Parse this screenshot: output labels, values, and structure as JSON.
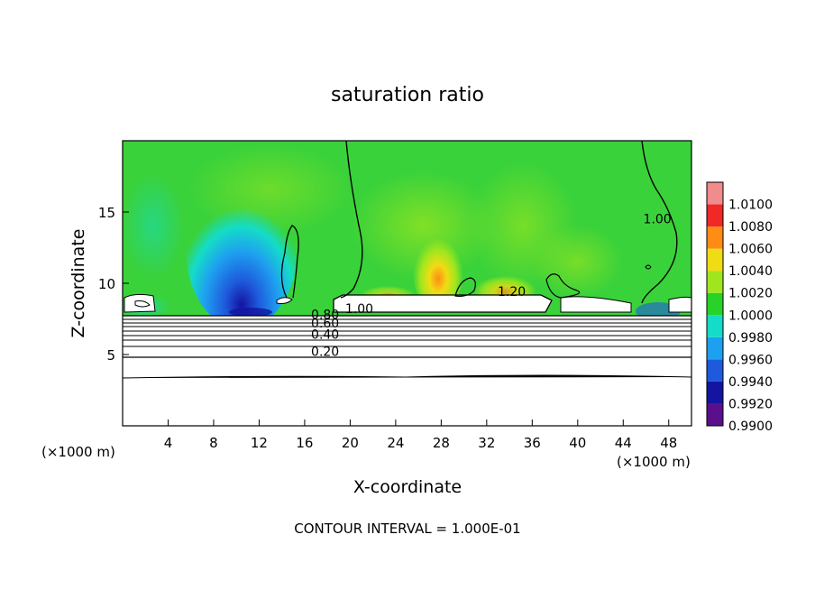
{
  "chart_data": {
    "type": "heatmap",
    "title": "saturation ratio",
    "xlabel": "X-coordinate",
    "ylabel": "Z-coordinate",
    "x_unit_left": "(×1000 m)",
    "x_unit_right": "(×1000 m)",
    "xlim": [
      0,
      50
    ],
    "ylim": [
      0,
      20
    ],
    "x_ticks": [
      4,
      8,
      12,
      16,
      20,
      24,
      28,
      32,
      36,
      40,
      44,
      48
    ],
    "y_ticks": [
      5,
      10,
      15
    ],
    "colorbar": {
      "levels": [
        0.99,
        0.992,
        0.994,
        0.996,
        0.998,
        1.0,
        1.002,
        1.004,
        1.006,
        1.008,
        1.01
      ],
      "labels": [
        "0.9900",
        "0.9920",
        "0.9940",
        "0.9960",
        "0.9980",
        "1.0000",
        "1.0020",
        "1.0040",
        "1.0060",
        "1.0080",
        "1.0100"
      ],
      "colors": [
        "#5a0f8c",
        "#1414a0",
        "#1e5adc",
        "#1ea0f0",
        "#14dcc8",
        "#28d228",
        "#a0e61e",
        "#f0dc14",
        "#ff8c14",
        "#f02828",
        "#f08c8c"
      ]
    },
    "contour_interval": "CONTOUR INTERVAL = 1.000E-01",
    "contour_labels": [
      {
        "text": "1.00",
        "x": 20.8,
        "z": 7.9
      },
      {
        "text": "1.00",
        "x": 47.0,
        "z": 14.2
      },
      {
        "text": "1.20",
        "x": 34.2,
        "z": 9.1
      },
      {
        "text": "0.80",
        "x": 17.8,
        "z": 7.5
      },
      {
        "text": "0.60",
        "x": 17.8,
        "z": 6.9
      },
      {
        "text": "0.40",
        "x": 17.8,
        "z": 6.1
      },
      {
        "text": "0.20",
        "x": 17.8,
        "z": 4.9
      }
    ],
    "layer_contours": [
      7.8,
      7.5,
      7.2,
      6.9,
      6.6,
      6.3,
      6.0,
      5.5,
      4.9,
      3.6
    ]
  }
}
